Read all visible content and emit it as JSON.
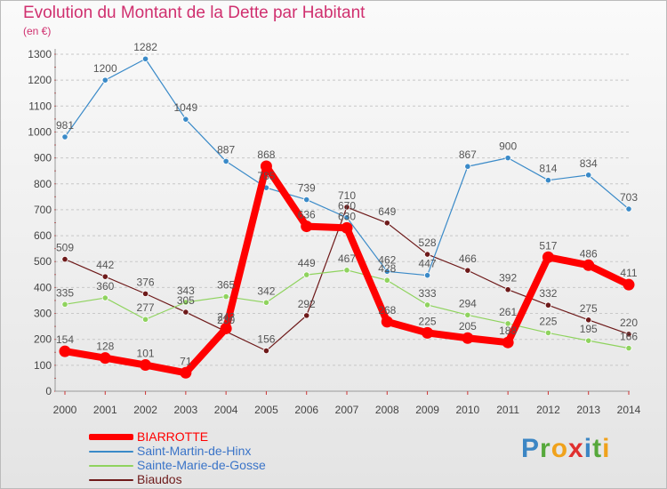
{
  "title": "Evolution du Montant de la Dette par Habitant",
  "unit_label": "(en €)",
  "logo": {
    "letters": [
      {
        "ch": "P",
        "color": "#3c86c4"
      },
      {
        "ch": "r",
        "color": "#56a83b"
      },
      {
        "ch": "o",
        "color": "#f0a21c"
      },
      {
        "ch": "x",
        "color": "#e0302f"
      },
      {
        "ch": "i",
        "color": "#3c86c4"
      },
      {
        "ch": "t",
        "color": "#56a83b"
      },
      {
        "ch": "i",
        "color": "#f0a21c"
      }
    ]
  },
  "chart_data": {
    "type": "line",
    "title": "Evolution du Montant de la Dette par Habitant",
    "ylabel": "(en €)",
    "xlabel": "",
    "ylim": [
      0,
      1300
    ],
    "yticks": [
      "0",
      "100",
      "200",
      "300",
      "400",
      "500",
      "600",
      "700",
      "800",
      "900",
      "1000",
      "1100",
      "1200",
      "1300"
    ],
    "grid": "horizontal dashed",
    "legend_position": "bottom-left",
    "categories": [
      "2000",
      "2001",
      "2002",
      "2003",
      "2004",
      "2005",
      "2006",
      "2007",
      "2008",
      "2009",
      "2010",
      "2011",
      "2012",
      "2013",
      "2014"
    ],
    "series": [
      {
        "name": "BIARROTTE",
        "color": "#ff0000",
        "emphasis": true,
        "values": [
          154,
          128,
          101,
          71,
          242,
          868,
          636,
          630,
          268,
          225,
          205,
          188,
          517,
          486,
          411
        ],
        "labels": [
          "154",
          "128",
          "101",
          "71",
          "242",
          "868",
          "636",
          "630",
          "268",
          "225",
          "205",
          "188",
          "517",
          "486",
          "411"
        ]
      },
      {
        "name": "Saint-Martin-de-Hinx",
        "color": "#3a8ac8",
        "values": [
          981,
          1200,
          1282,
          1049,
          887,
          785,
          739,
          670,
          462,
          447,
          867,
          900,
          814,
          834,
          703
        ],
        "labels": [
          "981",
          "1200",
          "1282",
          "1049",
          "887",
          "785",
          "739",
          "670",
          "462",
          "447",
          "867",
          "900",
          "814",
          "834",
          "703"
        ]
      },
      {
        "name": "Sainte-Marie-de-Gosse",
        "color": "#8fd35e",
        "values": [
          335,
          360,
          277,
          343,
          365,
          342,
          449,
          467,
          428,
          333,
          294,
          261,
          225,
          195,
          166
        ],
        "labels": [
          "335",
          "360",
          "277",
          "343",
          "365",
          "342",
          "449",
          "467",
          "428",
          "333",
          "294",
          "261",
          "225",
          "195",
          "166"
        ]
      },
      {
        "name": "Biaudos",
        "color": "#6e1a1a",
        "values": [
          509,
          442,
          376,
          305,
          230,
          156,
          292,
          710,
          649,
          528,
          466,
          392,
          332,
          275,
          220
        ],
        "labels": [
          "509",
          "442",
          "376",
          "305",
          "230",
          "156",
          "292",
          "710",
          "649",
          "528",
          "466",
          "392",
          "332",
          "275",
          "220"
        ]
      }
    ]
  }
}
